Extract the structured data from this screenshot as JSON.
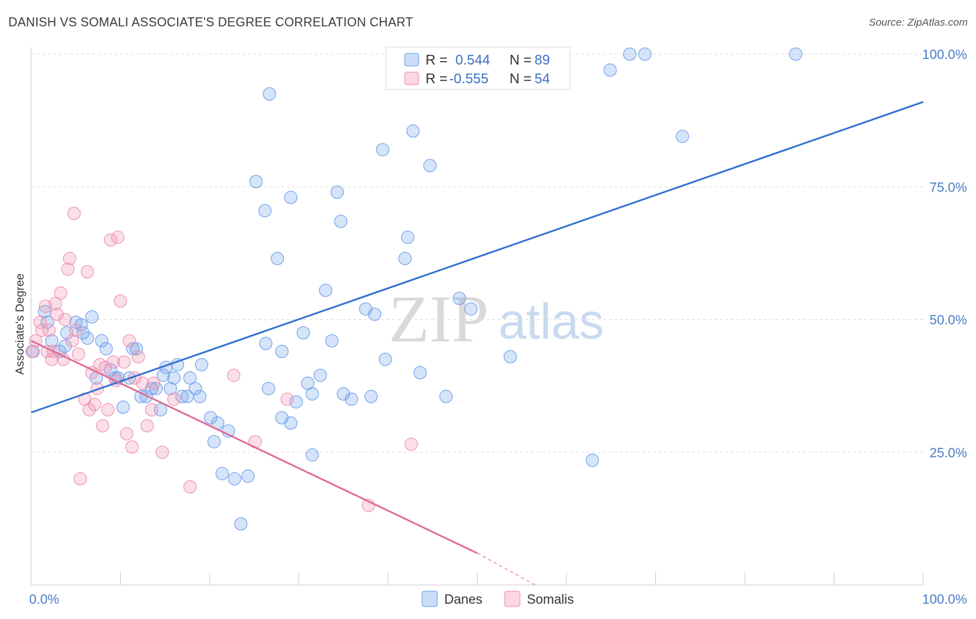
{
  "header": {
    "title": "DANISH VS SOMALI ASSOCIATE'S DEGREE CORRELATION CHART",
    "source": "Source: ZipAtlas.com"
  },
  "watermark": {
    "zip": "ZIP",
    "atlas": "atlas"
  },
  "legend": {
    "r_label": "R =",
    "n_label": "N =",
    "rows": [
      {
        "series": "Danes",
        "r": "0.544",
        "n": "89",
        "color": "#6d9eeb"
      },
      {
        "series": "Somalis",
        "r": "-0.555",
        "n": "54",
        "color": "#f08cad"
      }
    ]
  },
  "colors": {
    "danes_fill": "rgba(109,158,235,0.28)",
    "danes_stroke": "#6d9eeb",
    "danes_line": "#2f6fd1",
    "somalis_fill": "rgba(240,140,173,0.28)",
    "somalis_stroke": "#ec8fb0",
    "somalis_line": "#e06a96",
    "grid": "#dddddd",
    "tick_label": "#4a7cc7"
  },
  "chart_data": {
    "type": "scatter",
    "ylabel": "Associate's Degree",
    "x_tick_labels": [
      "0.0%",
      "100.0%"
    ],
    "y_tick_labels": [
      "25.0%",
      "50.0%",
      "75.0%",
      "100.0%"
    ],
    "y_ticks": [
      25,
      50,
      75,
      100
    ],
    "xlim": [
      0,
      100
    ],
    "ylim": [
      0,
      100
    ],
    "grid": true,
    "legend_position": "top-center",
    "series": [
      {
        "name": "Danes",
        "points": [
          [
            0.2,
            44
          ],
          [
            1.5,
            51.5
          ],
          [
            1.8,
            49.5
          ],
          [
            2.3,
            46
          ],
          [
            3.2,
            44
          ],
          [
            3.8,
            45
          ],
          [
            4,
            47.5
          ],
          [
            5,
            49.5
          ],
          [
            5.6,
            49
          ],
          [
            5.8,
            47.5
          ],
          [
            6.3,
            46.5
          ],
          [
            6.8,
            50.5
          ],
          [
            7.3,
            39
          ],
          [
            7.9,
            46
          ],
          [
            8.4,
            44.5
          ],
          [
            8.9,
            40.5
          ],
          [
            9.4,
            39
          ],
          [
            9.7,
            39
          ],
          [
            10.3,
            33.5
          ],
          [
            11,
            39
          ],
          [
            11.4,
            44.5
          ],
          [
            11.8,
            44.5
          ],
          [
            12.3,
            35.5
          ],
          [
            12.9,
            35.5
          ],
          [
            13.5,
            37
          ],
          [
            14,
            37
          ],
          [
            14.5,
            33
          ],
          [
            14.8,
            39.5
          ],
          [
            15.1,
            41
          ],
          [
            15.6,
            37
          ],
          [
            16,
            39
          ],
          [
            16.4,
            41.5
          ],
          [
            16.9,
            35.5
          ],
          [
            17.5,
            35.5
          ],
          [
            17.8,
            39
          ],
          [
            18.4,
            37
          ],
          [
            18.9,
            35.5
          ],
          [
            19.1,
            41.5
          ],
          [
            20.1,
            31.5
          ],
          [
            20.5,
            27
          ],
          [
            20.9,
            30.5
          ],
          [
            21.4,
            21
          ],
          [
            22.1,
            29
          ],
          [
            22.8,
            20
          ],
          [
            23.5,
            11.5
          ],
          [
            24.3,
            20.5
          ],
          [
            25.2,
            76
          ],
          [
            26.2,
            70.5
          ],
          [
            26.3,
            45.5
          ],
          [
            26.6,
            37
          ],
          [
            27.6,
            61.5
          ],
          [
            28.1,
            31.5
          ],
          [
            26.7,
            92.5
          ],
          [
            28.1,
            44
          ],
          [
            29.1,
            73
          ],
          [
            29.1,
            30.5
          ],
          [
            29.7,
            34.5
          ],
          [
            30.5,
            47.5
          ],
          [
            31,
            38
          ],
          [
            31.5,
            36
          ],
          [
            31.5,
            24.5
          ],
          [
            32.4,
            39.5
          ],
          [
            33,
            55.5
          ],
          [
            33.7,
            46
          ],
          [
            34.3,
            74
          ],
          [
            34.7,
            68.5
          ],
          [
            35,
            36
          ],
          [
            35.9,
            35
          ],
          [
            37.5,
            52
          ],
          [
            38.1,
            35.5
          ],
          [
            38.5,
            51
          ],
          [
            39.4,
            82
          ],
          [
            39.7,
            42.5
          ],
          [
            41.9,
            61.5
          ],
          [
            42.2,
            65.5
          ],
          [
            42.8,
            85.5
          ],
          [
            43.6,
            40
          ],
          [
            44.7,
            79
          ],
          [
            46.5,
            35.5
          ],
          [
            48,
            54
          ],
          [
            49.3,
            52
          ],
          [
            53.7,
            43
          ],
          [
            58.2,
            100
          ],
          [
            62.9,
            23.5
          ],
          [
            64.9,
            97
          ],
          [
            67.1,
            100
          ],
          [
            68.8,
            100
          ],
          [
            73,
            84.5
          ],
          [
            85.7,
            100
          ]
        ]
      },
      {
        "name": "Somalis",
        "points": [
          [
            0.1,
            44
          ],
          [
            0.5,
            46
          ],
          [
            1,
            49.5
          ],
          [
            1.2,
            48
          ],
          [
            1.6,
            52.5
          ],
          [
            1.8,
            44
          ],
          [
            2,
            48
          ],
          [
            2.3,
            42.5
          ],
          [
            2.5,
            44
          ],
          [
            2.7,
            53
          ],
          [
            2.9,
            51
          ],
          [
            3.3,
            55
          ],
          [
            3.6,
            42.5
          ],
          [
            3.8,
            50
          ],
          [
            4.1,
            59.5
          ],
          [
            4.3,
            61.5
          ],
          [
            4.6,
            46
          ],
          [
            4.8,
            70
          ],
          [
            5,
            48
          ],
          [
            5.3,
            43.5
          ],
          [
            5.5,
            20
          ],
          [
            6,
            35
          ],
          [
            6.3,
            59
          ],
          [
            6.5,
            33
          ],
          [
            6.8,
            40
          ],
          [
            7.1,
            34
          ],
          [
            7.4,
            37
          ],
          [
            7.7,
            41.5
          ],
          [
            8,
            30
          ],
          [
            8.3,
            41
          ],
          [
            8.6,
            33
          ],
          [
            8.9,
            65
          ],
          [
            9.2,
            42
          ],
          [
            9.5,
            38.5
          ],
          [
            9.7,
            65.5
          ],
          [
            10,
            53.5
          ],
          [
            10.4,
            42
          ],
          [
            10.7,
            28.5
          ],
          [
            11,
            46
          ],
          [
            11.3,
            26
          ],
          [
            11.6,
            39
          ],
          [
            12,
            43
          ],
          [
            12.5,
            38
          ],
          [
            13,
            30
          ],
          [
            13.5,
            33
          ],
          [
            13.7,
            38
          ],
          [
            14.7,
            25
          ],
          [
            16,
            35
          ],
          [
            17.8,
            18.5
          ],
          [
            22.7,
            39.5
          ],
          [
            25.1,
            27
          ],
          [
            28.7,
            35
          ],
          [
            37.8,
            15
          ],
          [
            42.6,
            26.5
          ]
        ]
      }
    ],
    "trend_lines": [
      {
        "series": "Danes",
        "from": [
          0,
          32.5
        ],
        "to": [
          100,
          91
        ]
      },
      {
        "series": "Somalis",
        "from": [
          0,
          46
        ],
        "to": [
          50,
          6
        ],
        "dashed_to": [
          56.5,
          0
        ]
      }
    ]
  }
}
